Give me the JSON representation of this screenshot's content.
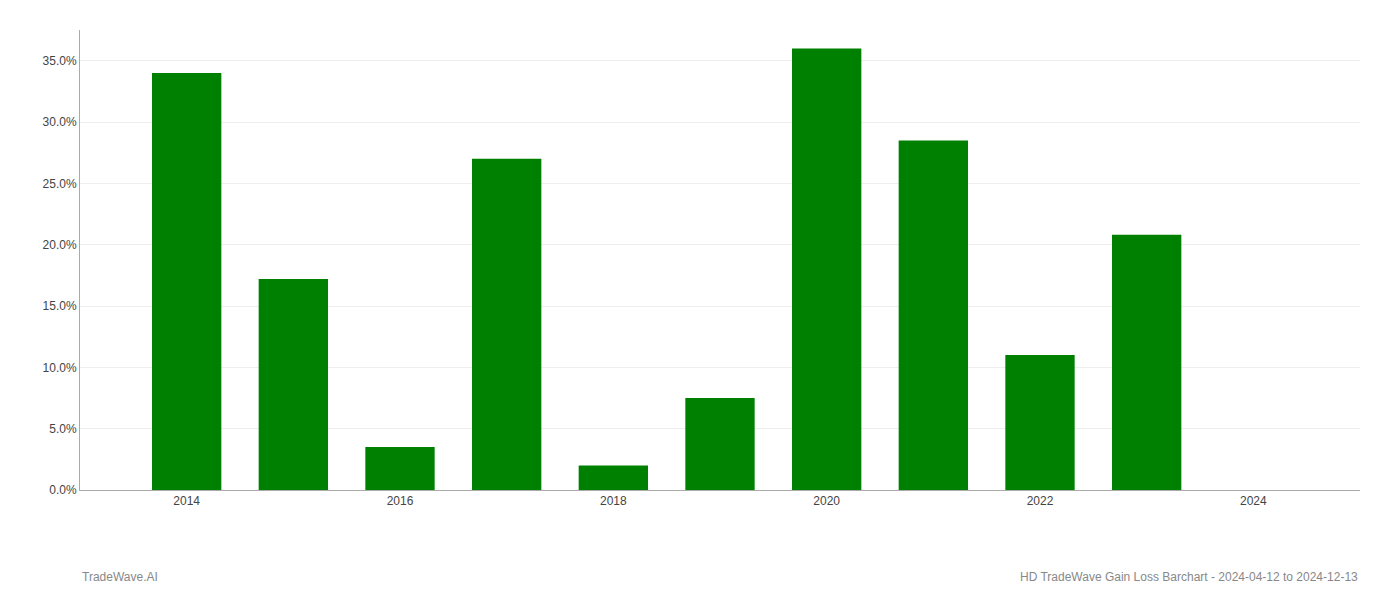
{
  "chart_data": {
    "type": "bar",
    "title": "HD TradeWave Gain Loss Barchart - 2024-04-12 to 2024-12-13",
    "annotations": [
      "TradeWave.AI"
    ],
    "x": [
      2014,
      2015,
      2016,
      2017,
      2018,
      2019,
      2020,
      2021,
      2022,
      2023,
      2024
    ],
    "values": [
      0.34,
      0.172,
      0.035,
      0.27,
      0.02,
      0.075,
      0.36,
      0.285,
      0.11,
      0.208,
      0.0
    ],
    "color": "#008000",
    "xlim": [
      2013,
      2025
    ],
    "xticks": [
      2014,
      2016,
      2018,
      2020,
      2022,
      2024
    ],
    "ylim": [
      0,
      0.375
    ],
    "yticks": [
      {
        "value": 0.0,
        "label": "0.0%"
      },
      {
        "value": 0.05,
        "label": "5.0%"
      },
      {
        "value": 0.1,
        "label": "10.0%"
      },
      {
        "value": 0.15,
        "label": "15.0%"
      },
      {
        "value": 0.2,
        "label": "20.0%"
      },
      {
        "value": 0.25,
        "label": "25.0%"
      },
      {
        "value": 0.3,
        "label": "30.0%"
      },
      {
        "value": 0.35,
        "label": "35.0%"
      }
    ],
    "grid": true
  }
}
